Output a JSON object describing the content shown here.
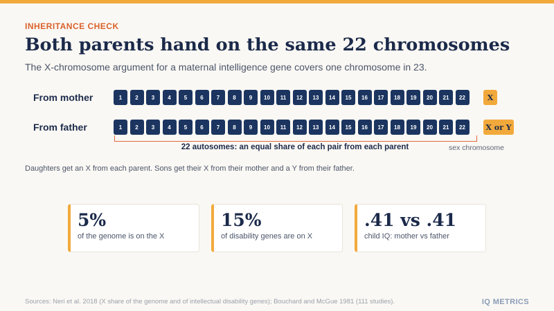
{
  "kicker": "INHERITANCE CHECK",
  "title": "Both parents hand on the same 22 chromosomes",
  "subtitle": "The X-chromosome argument for a maternal intelligence gene covers one chromosome in 23.",
  "rows": [
    {
      "label": "From mother",
      "sex": "X"
    },
    {
      "label": "From father",
      "sex": "X or Y"
    }
  ],
  "autosomes": [
    "1",
    "2",
    "3",
    "4",
    "5",
    "6",
    "7",
    "8",
    "9",
    "10",
    "11",
    "12",
    "13",
    "14",
    "15",
    "16",
    "17",
    "18",
    "19",
    "20",
    "21",
    "22"
  ],
  "bracket_label": "22 autosomes: an equal share of each pair from each parent",
  "sex_label": "sex chromosome",
  "note": "Daughters get an X from each parent. Sons get their X from their mother and a Y from their father.",
  "stats": [
    {
      "value": "5%",
      "desc": "of the genome is on the X"
    },
    {
      "value": "15%",
      "desc": "of disability genes are on X"
    },
    {
      "value": ".41 vs .41",
      "desc": "child IQ: mother vs father"
    }
  ],
  "sources": "Sources: Neri et al. 2018 (X share of the genome and of intellectual disability genes); Bouchard and McGue 1981 (111 studies).",
  "brand": "IQ METRICS",
  "colors": {
    "accent": "#f2a93b",
    "kicker": "#d9612a",
    "navy": "#1b2a4a",
    "chromosome": "#1b3560",
    "bracket": "#e06a3a"
  }
}
